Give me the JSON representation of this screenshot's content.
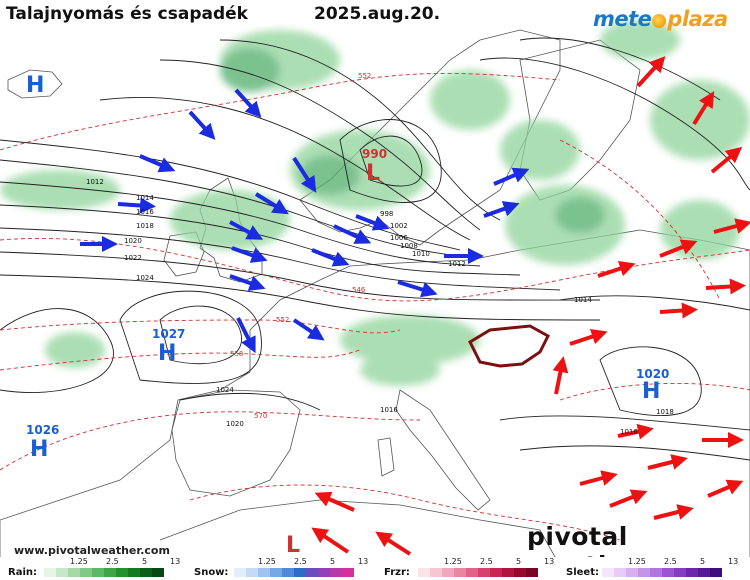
{
  "header": {
    "title": "Talajnyomás és csapadék",
    "date": "2025.aug.20."
  },
  "branding": {
    "meteo": "mete",
    "plaza": "plaza",
    "pivotal": "pivotal weather",
    "url": "www.pivotalweather.com"
  },
  "pressure_centers": [
    {
      "type": "H",
      "value": "",
      "color": "#1a5fd0"
    },
    {
      "type": "H",
      "value": "1027",
      "color": "#1a5fd0"
    },
    {
      "type": "H",
      "value": "1026",
      "color": "#1a5fd0"
    },
    {
      "type": "H",
      "value": "1020",
      "color": "#1a5fd0"
    },
    {
      "type": "L",
      "value": "990",
      "color": "#d03030"
    },
    {
      "type": "L",
      "value": "",
      "color": "#d03030"
    }
  ],
  "isobar_labels": [
    "1012",
    "1014",
    "1016",
    "1018",
    "1020",
    "1022",
    "1024",
    "998",
    "1002",
    "1006",
    "1008",
    "1010",
    "1012",
    "1014",
    "1024",
    "1020",
    "1016",
    "1018",
    "1016"
  ],
  "thickness_labels": [
    "552",
    "546",
    "552",
    "558",
    "570"
  ],
  "legend": {
    "rain": {
      "label": "Rain:",
      "ticks": [
        "1.25",
        "2.5",
        "5",
        "13"
      ]
    },
    "snow": {
      "label": "Snow:",
      "ticks": [
        "1.25",
        "2.5",
        "5",
        "13"
      ]
    },
    "frzr": {
      "label": "Frzr:",
      "ticks": [
        "1.25",
        "2.5",
        "5",
        "13"
      ]
    },
    "sleet": {
      "label": "Sleet:",
      "ticks": [
        "1.25",
        "2.5",
        "5",
        "13"
      ]
    }
  },
  "colors": {
    "precip_green": "#8fd49a",
    "isobar": "#222222",
    "thickness": "#d03030",
    "arrow_blue": "#1a2be0",
    "arrow_red": "#ee1111",
    "hungary_border": "#7a1010"
  },
  "icons": [
    "meteoplaza-logo-icon",
    "pivotal-weather-logo-icon"
  ]
}
